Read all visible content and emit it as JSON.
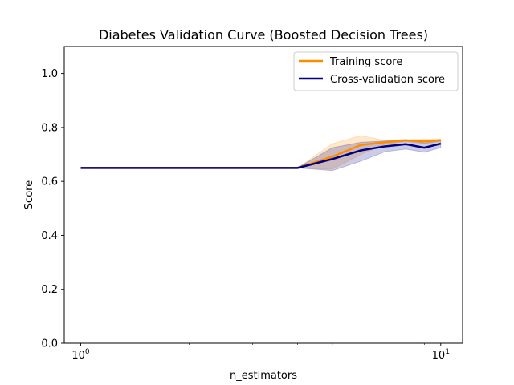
{
  "chart_data": {
    "type": "line",
    "title": "Diabetes Validation Curve (Boosted Decision Trees)",
    "xlabel": "n_estimators",
    "ylabel": "Score",
    "xscale": "log",
    "xlim": [
      0.9,
      11.5
    ],
    "ylim": [
      0.0,
      1.1
    ],
    "x_ticks": [
      {
        "value": 1,
        "label": "10",
        "exp": "0"
      },
      {
        "value": 10,
        "label": "10",
        "exp": "1"
      }
    ],
    "y_ticks": [
      {
        "value": 0.0,
        "label": "0.0"
      },
      {
        "value": 0.2,
        "label": "0.2"
      },
      {
        "value": 0.4,
        "label": "0.4"
      },
      {
        "value": 0.6,
        "label": "0.6"
      },
      {
        "value": 0.8,
        "label": "0.8"
      },
      {
        "value": 1.0,
        "label": "1.0"
      }
    ],
    "grid": false,
    "legend_position": "upper-right",
    "x": [
      1,
      2,
      3,
      4,
      5,
      6,
      7,
      8,
      9,
      10
    ],
    "series": [
      {
        "name": "Training score",
        "color": "#ff8c00",
        "values": [
          0.65,
          0.65,
          0.65,
          0.65,
          0.692,
          0.735,
          0.745,
          0.752,
          0.748,
          0.753
        ],
        "lower": [
          0.65,
          0.65,
          0.65,
          0.65,
          0.645,
          0.7,
          0.738,
          0.748,
          0.74,
          0.748
        ],
        "upper": [
          0.65,
          0.65,
          0.65,
          0.65,
          0.74,
          0.77,
          0.752,
          0.756,
          0.756,
          0.758
        ]
      },
      {
        "name": "Cross-validation score",
        "color": "#000080",
        "values": [
          0.65,
          0.65,
          0.65,
          0.65,
          0.683,
          0.715,
          0.73,
          0.738,
          0.725,
          0.74
        ],
        "lower": [
          0.65,
          0.65,
          0.65,
          0.65,
          0.64,
          0.675,
          0.71,
          0.72,
          0.708,
          0.725
        ],
        "upper": [
          0.65,
          0.65,
          0.65,
          0.65,
          0.725,
          0.745,
          0.75,
          0.755,
          0.742,
          0.752
        ]
      }
    ]
  }
}
